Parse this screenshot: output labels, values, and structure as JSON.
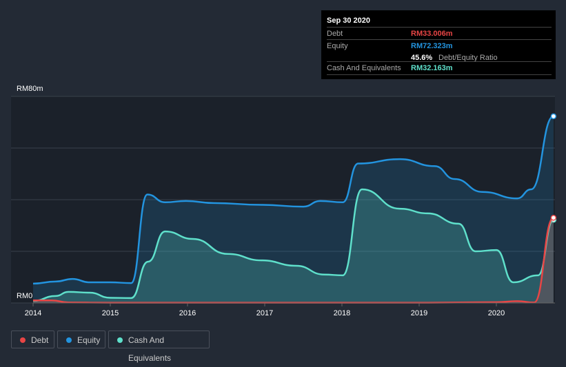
{
  "tooltip": {
    "date": "Sep 30 2020",
    "debt_label": "Debt",
    "debt_value": "RM33.006m",
    "equity_label": "Equity",
    "equity_value": "RM72.323m",
    "ratio_value": "45.6%",
    "ratio_label": "Debt/Equity Ratio",
    "cash_label": "Cash And Equivalents",
    "cash_value": "RM32.163m"
  },
  "legend": [
    {
      "label": "Debt",
      "color": "#e84545"
    },
    {
      "label": "Equity",
      "color": "#2394df"
    },
    {
      "label": "Cash And Equivalents",
      "color": "#5fe0cb"
    }
  ],
  "chart_data": {
    "type": "area",
    "ylim": [
      0,
      80
    ],
    "xlim": [
      2014,
      2020.75
    ],
    "y_tick_labels": [
      {
        "value": 80,
        "label": "RM80m"
      },
      {
        "value": 0,
        "label": "RM0"
      }
    ],
    "x_ticks": [
      2014,
      2015,
      2016,
      2017,
      2018,
      2019,
      2020
    ],
    "x_tick_labels": [
      "2014",
      "2015",
      "2016",
      "2017",
      "2018",
      "2019",
      "2020"
    ],
    "series": [
      {
        "name": "Equity",
        "color": "#2394df",
        "x": [
          2014,
          2014.29,
          2014.51,
          2014.73,
          2015,
          2015.27,
          2015.48,
          2015.71,
          2015.98,
          2016.34,
          2016.96,
          2017.5,
          2017.72,
          2018.01,
          2018.21,
          2018.75,
          2019.2,
          2019.46,
          2019.82,
          2020.27,
          2020.45,
          2020.74
        ],
        "values": [
          7.5,
          8.3,
          9.3,
          8,
          8,
          7.7,
          42,
          39,
          39.5,
          38.7,
          38,
          37.3,
          39.5,
          39,
          54,
          55.7,
          53,
          48,
          43,
          40.5,
          44,
          72.3
        ]
      },
      {
        "name": "Cash And Equivalents",
        "color": "#5fe0cb",
        "x": [
          2014,
          2014.29,
          2014.46,
          2014.73,
          2015,
          2015.27,
          2015.49,
          2015.71,
          2016.07,
          2016.52,
          2016.96,
          2017.41,
          2017.77,
          2018.01,
          2018.26,
          2018.75,
          2019.11,
          2019.51,
          2019.73,
          2020,
          2020.22,
          2020.54,
          2020.74
        ],
        "values": [
          0.8,
          2.7,
          4.3,
          4,
          2,
          1.9,
          16,
          27.7,
          24.8,
          19,
          16.5,
          14.4,
          11,
          10.7,
          44,
          36.5,
          34.7,
          30.7,
          20,
          20.5,
          8,
          10.7,
          32.2
        ]
      },
      {
        "name": "Debt",
        "color": "#e84545",
        "x": [
          2014,
          2014.24,
          2014.46,
          2015,
          2016,
          2017,
          2018,
          2019,
          2020,
          2020.27,
          2020.49,
          2020.74
        ],
        "values": [
          1,
          1,
          0.2,
          0.1,
          0.1,
          0.1,
          0.1,
          0.1,
          0.3,
          0.7,
          0.2,
          33
        ]
      }
    ]
  }
}
